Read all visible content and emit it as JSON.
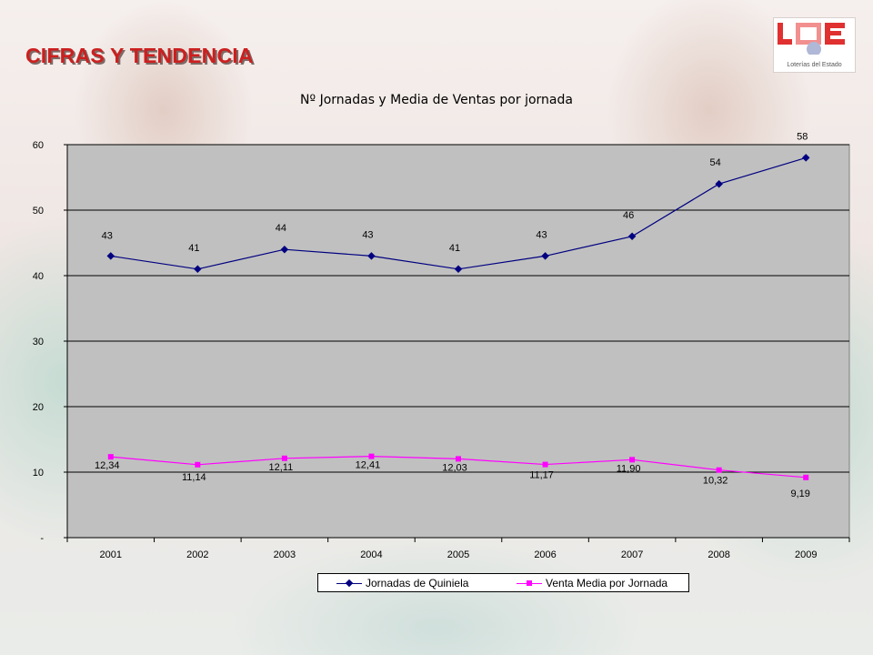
{
  "page": {
    "title": "CIFRAS Y TENDENCIA",
    "logo_text": "Loterías del Estado",
    "logo_letters": "LAE"
  },
  "colors": {
    "title_red": "#cc1f1f",
    "series1": "#000080",
    "series2": "#ff00ff",
    "plot_bg": "#c0c0c0"
  },
  "chart_data": {
    "type": "line",
    "title": "Nº Jornadas y Media de Ventas por jornada",
    "categories": [
      "2001",
      "2002",
      "2003",
      "2004",
      "2005",
      "2006",
      "2007",
      "2008",
      "2009"
    ],
    "y_ticks": [
      "-",
      "10",
      "20",
      "30",
      "40",
      "50",
      "60"
    ],
    "ylim": [
      0,
      60
    ],
    "grid": true,
    "legend_position": "bottom",
    "series": [
      {
        "name": "Jornadas de Quiniela",
        "values": [
          43,
          41,
          44,
          43,
          41,
          43,
          46,
          54,
          58
        ],
        "labels": [
          "43",
          "41",
          "44",
          "43",
          "41",
          "43",
          "46",
          "54",
          "58"
        ],
        "marker": "diamond",
        "color": "#000080"
      },
      {
        "name": "Venta Media por Jornada",
        "values": [
          12.34,
          11.14,
          12.11,
          12.41,
          12.03,
          11.17,
          11.9,
          10.32,
          9.19
        ],
        "labels": [
          "12,34",
          "11,14",
          "12,11",
          "12,41",
          "12,03",
          "11,17",
          "11,90",
          "10,32",
          "9,19"
        ],
        "marker": "square",
        "color": "#ff00ff"
      }
    ]
  }
}
